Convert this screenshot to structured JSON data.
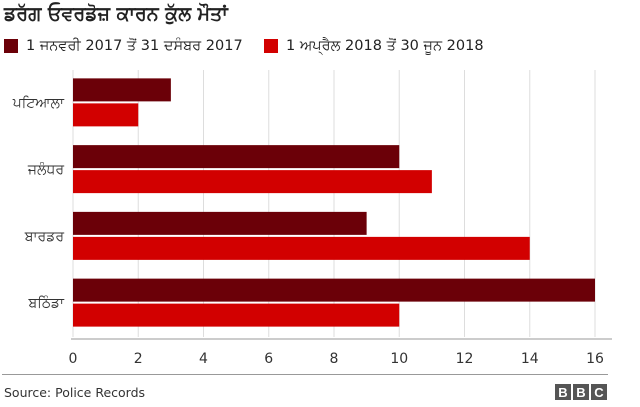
{
  "chart_data": {
    "type": "bar",
    "orientation": "horizontal",
    "title": "ਡਰੱਗ ਓਵਰਡੋਜ਼ ਕਾਰਨ ਕੁੱਲ ਮੌਤਾਂ",
    "categories": [
      "ਪਟਿਆਲਾ",
      "ਜਲੰਧਰ",
      "ਬਾਰਡਰ",
      "ਬਠਿੰਡਾ"
    ],
    "series": [
      {
        "name": "1 ਜਨਵਰੀ 2017 ਤੋਂ 31 ਦਸੰਬਰ 2017",
        "color": "#6b0008",
        "values": [
          3,
          10,
          9,
          16
        ]
      },
      {
        "name": "1 ਅਪ੍ਰੈਲ 2018 ਤੋਂ 30 ਜੂਨ 2018",
        "color": "#d20000",
        "values": [
          2,
          11,
          14,
          10
        ]
      }
    ],
    "xlim": [
      0,
      16
    ],
    "xticks": [
      0,
      2,
      4,
      6,
      8,
      10,
      12,
      14,
      16
    ],
    "grid": true,
    "legend": "top-left",
    "source": "Source: Police Records"
  },
  "logo_letters": [
    "B",
    "B",
    "C"
  ]
}
